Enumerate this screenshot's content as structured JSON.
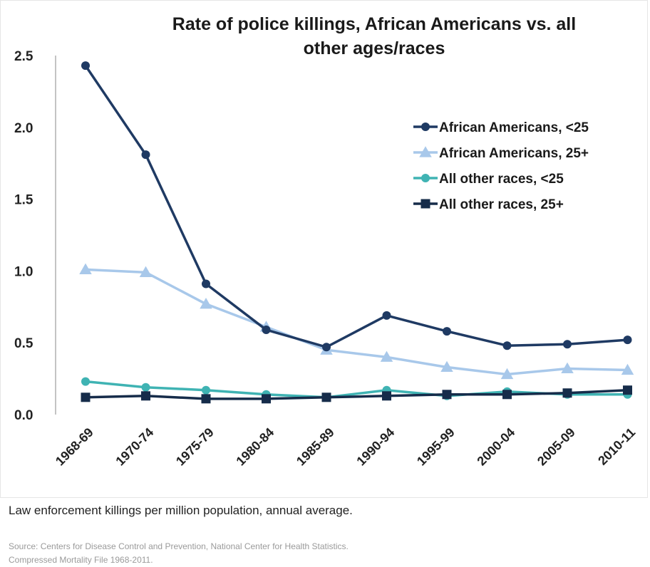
{
  "chart_data": {
    "type": "line",
    "title_lines": [
      "Rate of police killings, African Americans vs. all",
      "other ages/races"
    ],
    "categories": [
      "1968-69",
      "1970-74",
      "1975-79",
      "1980-84",
      "1985-89",
      "1990-94",
      "1995-99",
      "2000-04",
      "2005-09",
      "2010-11"
    ],
    "ylim": [
      0,
      2.5
    ],
    "yticks": [
      "0.0",
      "0.5",
      "1.0",
      "1.5",
      "2.0",
      "2.5"
    ],
    "legend_position": "right",
    "grid": false,
    "series": [
      {
        "name": "African Americans, <25",
        "color": "#1f3a63",
        "marker": "circle",
        "values": [
          2.43,
          1.81,
          0.91,
          0.59,
          0.47,
          0.69,
          0.58,
          0.48,
          0.49,
          0.52
        ]
      },
      {
        "name": "African Americans, 25+",
        "color": "#a8c8ea",
        "marker": "triangle",
        "values": [
          1.01,
          0.99,
          0.77,
          0.61,
          0.45,
          0.4,
          0.33,
          0.28,
          0.32,
          0.31
        ]
      },
      {
        "name": "All other races, <25",
        "color": "#3fb3b3",
        "marker": "circle",
        "values": [
          0.23,
          0.19,
          0.17,
          0.14,
          0.12,
          0.17,
          0.13,
          0.16,
          0.14,
          0.14
        ]
      },
      {
        "name": "All other races, 25+",
        "color": "#162c4a",
        "marker": "square",
        "values": [
          0.12,
          0.13,
          0.11,
          0.11,
          0.12,
          0.13,
          0.14,
          0.14,
          0.15,
          0.17
        ]
      }
    ]
  },
  "caption": "Law enforcement killings per million population, annual average.",
  "source_lines": [
    "Source: Centers for Disease Control and Prevention, National Center for Health Statistics.",
    "Compressed Mortality File 1968-2011."
  ]
}
